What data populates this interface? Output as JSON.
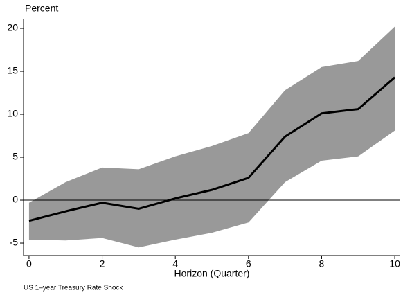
{
  "chart_data": {
    "type": "band-line",
    "y_label": "Percent",
    "x_label": "Horizon (Quarter)",
    "note": "US 1–year Treasury Rate Shock",
    "x": [
      0,
      1,
      2,
      3,
      4,
      5,
      6,
      7,
      8,
      9,
      10
    ],
    "line": {
      "color": "#000000",
      "values": [
        -2.4,
        -1.3,
        -0.3,
        -1.0,
        0.2,
        1.2,
        2.6,
        7.4,
        10.1,
        10.6,
        14.3
      ]
    },
    "band": {
      "color": "#999999",
      "upper": [
        -0.3,
        2.1,
        3.8,
        3.6,
        5.1,
        6.3,
        7.8,
        12.8,
        15.5,
        16.2,
        20.2
      ],
      "lower": [
        -4.6,
        -4.7,
        -4.4,
        -5.5,
        -4.6,
        -3.8,
        -2.6,
        2.1,
        4.6,
        5.1,
        8.1
      ]
    },
    "hline": 0,
    "xlim": [
      -0.15,
      10.15
    ],
    "ylim": [
      -6.45,
      21.05
    ],
    "xticks": [
      0,
      2,
      4,
      6,
      8,
      10
    ],
    "yticks": [
      -5,
      0,
      5,
      10,
      15,
      20
    ]
  }
}
